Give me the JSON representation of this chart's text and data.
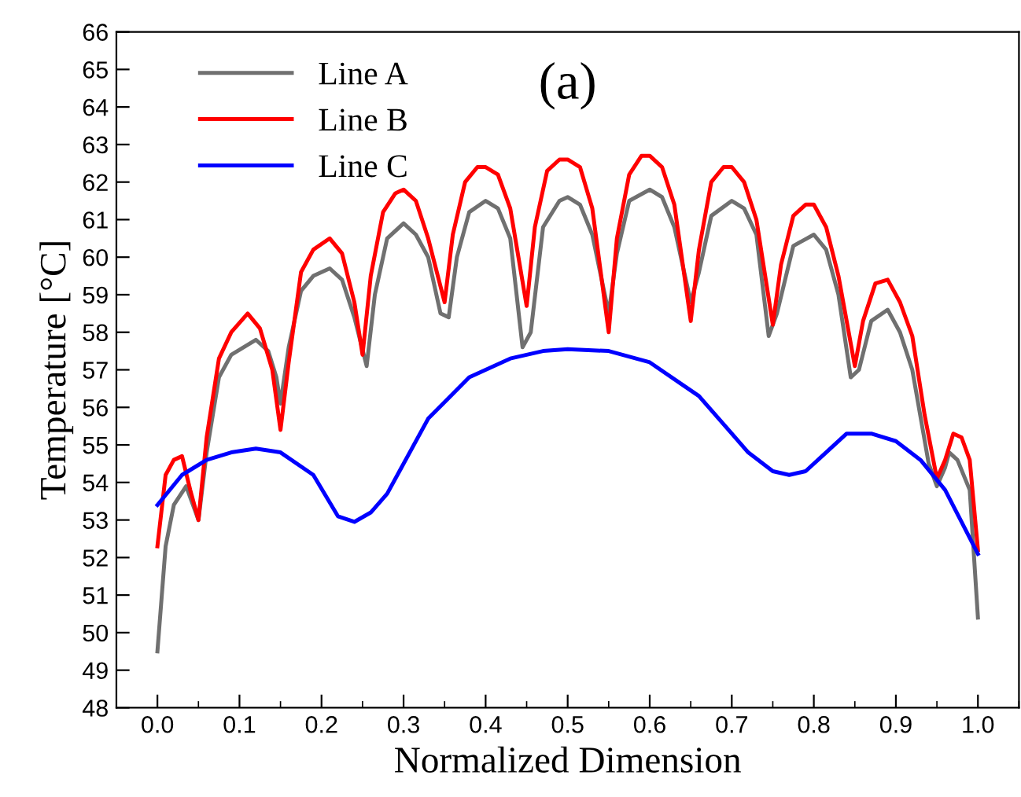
{
  "chart_data": {
    "type": "line",
    "xlabel": "Normalized Dimension",
    "ylabel": "Temperature [°C]",
    "annotations": [
      "(a)"
    ],
    "xlim": [
      -0.05,
      1.05
    ],
    "xticks": [
      {
        "value": 0,
        "label": "0.0"
      },
      0.1,
      0.2,
      0.3,
      0.4,
      0.5,
      0.6,
      0.7,
      0.8,
      0.9,
      {
        "value": 1,
        "label": "1.0"
      }
    ],
    "ylim": [
      48,
      66
    ],
    "yticks": [
      48,
      49,
      50,
      51,
      52,
      53,
      54,
      55,
      56,
      57,
      58,
      59,
      60,
      61,
      62,
      63,
      64,
      65,
      66
    ],
    "grid": false,
    "legend": "top left",
    "marker": "none",
    "line_style": "solid",
    "series": [
      {
        "name": "Line A",
        "color": "#707070",
        "x": [
          0,
          0.01,
          0.02,
          0.035,
          0.045,
          0.05,
          0.06,
          0.075,
          0.09,
          0.12,
          0.135,
          0.145,
          0.15,
          0.16,
          0.175,
          0.19,
          0.21,
          0.225,
          0.24,
          0.255,
          0.265,
          0.28,
          0.3,
          0.315,
          0.33,
          0.345,
          0.355,
          0.365,
          0.38,
          0.4,
          0.415,
          0.43,
          0.445,
          0.455,
          0.47,
          0.49,
          0.5,
          0.515,
          0.53,
          0.55,
          0.56,
          0.575,
          0.6,
          0.615,
          0.63,
          0.65,
          0.66,
          0.675,
          0.7,
          0.715,
          0.73,
          0.745,
          0.755,
          0.775,
          0.8,
          0.815,
          0.83,
          0.845,
          0.855,
          0.87,
          0.89,
          0.905,
          0.92,
          0.94,
          0.95,
          0.96,
          0.965,
          0.975,
          0.99,
          1.0
        ],
        "values": [
          49.5,
          52.3,
          53.4,
          53.9,
          53.3,
          53.0,
          54.8,
          56.8,
          57.4,
          57.8,
          57.5,
          56.8,
          56.1,
          57.6,
          59.1,
          59.5,
          59.7,
          59.4,
          58.4,
          57.1,
          59.0,
          60.5,
          60.9,
          60.6,
          60.0,
          58.5,
          58.4,
          60.0,
          61.2,
          61.5,
          61.3,
          60.5,
          57.6,
          58.0,
          60.8,
          61.5,
          61.6,
          61.4,
          60.6,
          58.5,
          60.1,
          61.5,
          61.8,
          61.6,
          60.8,
          58.8,
          59.6,
          61.1,
          61.5,
          61.3,
          60.6,
          57.9,
          58.5,
          60.3,
          60.6,
          60.2,
          59.0,
          56.8,
          57.0,
          58.3,
          58.6,
          58.0,
          57.0,
          54.5,
          53.9,
          54.4,
          54.8,
          54.6,
          53.8,
          50.4
        ]
      },
      {
        "name": "Line B",
        "color": "#ff0000",
        "x": [
          0,
          0.01,
          0.02,
          0.03,
          0.04,
          0.05,
          0.06,
          0.075,
          0.09,
          0.11,
          0.125,
          0.14,
          0.15,
          0.16,
          0.175,
          0.19,
          0.21,
          0.225,
          0.24,
          0.25,
          0.26,
          0.275,
          0.29,
          0.3,
          0.315,
          0.33,
          0.35,
          0.36,
          0.375,
          0.39,
          0.4,
          0.415,
          0.43,
          0.45,
          0.46,
          0.475,
          0.49,
          0.5,
          0.515,
          0.53,
          0.55,
          0.56,
          0.575,
          0.59,
          0.6,
          0.615,
          0.63,
          0.65,
          0.66,
          0.675,
          0.69,
          0.7,
          0.715,
          0.73,
          0.75,
          0.76,
          0.775,
          0.79,
          0.8,
          0.815,
          0.83,
          0.85,
          0.86,
          0.875,
          0.89,
          0.905,
          0.92,
          0.935,
          0.95,
          0.96,
          0.97,
          0.98,
          0.99,
          1.0
        ],
        "values": [
          52.3,
          54.2,
          54.6,
          54.7,
          53.8,
          53.0,
          55.2,
          57.3,
          58.0,
          58.5,
          58.1,
          57.0,
          55.4,
          57.2,
          59.6,
          60.2,
          60.5,
          60.1,
          58.8,
          57.4,
          59.5,
          61.2,
          61.7,
          61.8,
          61.5,
          60.5,
          58.8,
          60.6,
          62.0,
          62.4,
          62.4,
          62.2,
          61.3,
          58.7,
          60.8,
          62.3,
          62.6,
          62.6,
          62.4,
          61.3,
          58.0,
          60.5,
          62.2,
          62.7,
          62.7,
          62.4,
          61.4,
          58.3,
          60.2,
          62.0,
          62.4,
          62.4,
          62.0,
          61.0,
          58.2,
          59.8,
          61.1,
          61.4,
          61.4,
          60.8,
          59.5,
          57.1,
          58.3,
          59.3,
          59.4,
          58.8,
          57.9,
          55.8,
          54.1,
          54.6,
          55.3,
          55.2,
          54.6,
          52.2
        ]
      },
      {
        "name": "Line C",
        "color": "#0000ff",
        "x": [
          0,
          0.03,
          0.06,
          0.09,
          0.12,
          0.15,
          0.19,
          0.22,
          0.24,
          0.26,
          0.28,
          0.33,
          0.38,
          0.43,
          0.47,
          0.5,
          0.55,
          0.6,
          0.64,
          0.66,
          0.7,
          0.72,
          0.75,
          0.77,
          0.79,
          0.81,
          0.84,
          0.87,
          0.9,
          0.93,
          0.96,
          1.0
        ],
        "values": [
          53.4,
          54.2,
          54.6,
          54.8,
          54.9,
          54.8,
          54.2,
          53.1,
          52.95,
          53.2,
          53.7,
          55.7,
          56.8,
          57.3,
          57.5,
          57.55,
          57.5,
          57.2,
          56.6,
          56.3,
          55.3,
          54.8,
          54.3,
          54.2,
          54.3,
          54.7,
          55.3,
          55.3,
          55.1,
          54.6,
          53.8,
          52.1
        ]
      }
    ]
  }
}
